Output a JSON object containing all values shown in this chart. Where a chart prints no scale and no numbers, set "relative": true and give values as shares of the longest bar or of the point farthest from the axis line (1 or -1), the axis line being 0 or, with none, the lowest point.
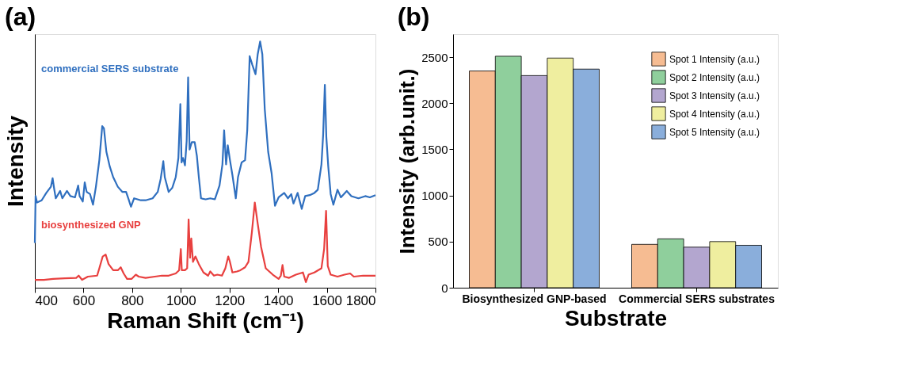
{
  "chart_data": [
    {
      "type": "line",
      "title": "(a)",
      "xlabel": "Raman Shift (cm⁻¹)",
      "ylabel": "Intensity",
      "relative": true,
      "xlim": [
        400,
        1800
      ],
      "xticks": [
        400,
        600,
        800,
        1000,
        1200,
        1400,
        1600,
        1800
      ],
      "tick_labels": "x",
      "grid": false,
      "legend": false,
      "marker": "none",
      "line_style": "solid",
      "series": [
        {
          "name": "commercial SERS substrate",
          "color": "#2f6fbf",
          "x": [
            400,
            403,
            409,
            428,
            447,
            466,
            473,
            480,
            486,
            504,
            513,
            532,
            546,
            565,
            578,
            584,
            597,
            605,
            613,
            627,
            639,
            651,
            665,
            677,
            684,
            694,
            708,
            722,
            741,
            760,
            775,
            784,
            795,
            808,
            836,
            855,
            884,
            905,
            917,
            928,
            934,
            950,
            965,
            979,
            990,
            998,
            1003,
            1009,
            1017,
            1024,
            1030,
            1036,
            1045,
            1057,
            1066,
            1074,
            1083,
            1102,
            1121,
            1140,
            1159,
            1171,
            1178,
            1186,
            1193,
            1202,
            1212,
            1226,
            1235,
            1250,
            1264,
            1273,
            1283,
            1294,
            1307,
            1316,
            1326,
            1335,
            1345,
            1359,
            1373,
            1387,
            1402,
            1425,
            1440,
            1454,
            1463,
            1480,
            1497,
            1511,
            1530,
            1549,
            1563,
            1578,
            1585,
            1592,
            1598,
            1606,
            1616,
            1627,
            1644,
            1658,
            1682,
            1701,
            1730,
            1758,
            1777,
            1800
          ],
          "values": [
            0.182,
            0.372,
            0.346,
            0.355,
            0.385,
            0.41,
            0.445,
            0.398,
            0.363,
            0.393,
            0.363,
            0.393,
            0.372,
            0.367,
            0.415,
            0.372,
            0.35,
            0.428,
            0.389,
            0.38,
            0.337,
            0.41,
            0.518,
            0.656,
            0.647,
            0.552,
            0.492,
            0.449,
            0.41,
            0.389,
            0.389,
            0.363,
            0.329,
            0.363,
            0.355,
            0.355,
            0.363,
            0.389,
            0.441,
            0.514,
            0.449,
            0.389,
            0.406,
            0.449,
            0.527,
            0.746,
            0.509,
            0.527,
            0.497,
            0.596,
            0.854,
            0.561,
            0.591,
            0.591,
            0.535,
            0.449,
            0.363,
            0.359,
            0.363,
            0.359,
            0.415,
            0.501,
            0.639,
            0.501,
            0.578,
            0.518,
            0.458,
            0.363,
            0.449,
            0.509,
            0.518,
            0.639,
            0.94,
            0.905,
            0.867,
            0.948,
            1.0,
            0.948,
            0.725,
            0.552,
            0.466,
            0.333,
            0.367,
            0.385,
            0.363,
            0.38,
            0.342,
            0.385,
            0.32,
            0.372,
            0.376,
            0.385,
            0.398,
            0.501,
            0.621,
            0.824,
            0.613,
            0.492,
            0.38,
            0.337,
            0.398,
            0.367,
            0.393,
            0.372,
            0.363,
            0.372,
            0.367,
            0.376
          ]
        },
        {
          "name": "biosynthesized GNP",
          "color": "#e8403f",
          "x": [
            400,
            437,
            475,
            523,
            570,
            580,
            594,
            618,
            656,
            665,
            679,
            691,
            703,
            722,
            741,
            753,
            765,
            779,
            798,
            815,
            827,
            855,
            893,
            922,
            950,
            979,
            993,
            1000,
            1004,
            1017,
            1026,
            1032,
            1038,
            1043,
            1050,
            1060,
            1074,
            1093,
            1112,
            1121,
            1136,
            1150,
            1169,
            1183,
            1195,
            1202,
            1212,
            1231,
            1245,
            1264,
            1278,
            1292,
            1304,
            1316,
            1330,
            1349,
            1378,
            1402,
            1411,
            1418,
            1425,
            1445,
            1473,
            1502,
            1514,
            1525,
            1549,
            1578,
            1589,
            1597,
            1604,
            1616,
            1644,
            1673,
            1696,
            1711,
            1749,
            1800
          ],
          "values": [
            0.032,
            0.032,
            0.036,
            0.038,
            0.04,
            0.049,
            0.032,
            0.045,
            0.049,
            0.079,
            0.127,
            0.135,
            0.096,
            0.071,
            0.071,
            0.083,
            0.058,
            0.036,
            0.036,
            0.053,
            0.045,
            0.04,
            0.045,
            0.049,
            0.049,
            0.058,
            0.071,
            0.157,
            0.071,
            0.071,
            0.079,
            0.277,
            0.122,
            0.2,
            0.105,
            0.127,
            0.096,
            0.062,
            0.049,
            0.066,
            0.049,
            0.053,
            0.049,
            0.079,
            0.127,
            0.105,
            0.062,
            0.066,
            0.071,
            0.083,
            0.105,
            0.225,
            0.346,
            0.26,
            0.165,
            0.079,
            0.053,
            0.036,
            0.049,
            0.092,
            0.045,
            0.04,
            0.053,
            0.062,
            0.023,
            0.053,
            0.062,
            0.079,
            0.157,
            0.312,
            0.088,
            0.053,
            0.045,
            0.053,
            0.058,
            0.045,
            0.049,
            0.049
          ]
        }
      ]
    },
    {
      "type": "bar",
      "title": "(b)",
      "xlabel": "Substrate",
      "ylabel": "Intensity (arb.unit.)",
      "categories": [
        "Biosynthesized GNP-based",
        "Commercial SERS substrates"
      ],
      "ylim": [
        0,
        2750
      ],
      "yticks": [
        0,
        500,
        1000,
        1500,
        2000,
        2500
      ],
      "grid": false,
      "legend": "top right",
      "series": [
        {
          "name": "Spot 1 Intensity (a.u.)",
          "color": "#f6bc92",
          "values": [
            2350,
            470
          ]
        },
        {
          "name": "Spot 2 Intensity (a.u.)",
          "color": "#8fcf9c",
          "values": [
            2510,
            530
          ]
        },
        {
          "name": "Spot 3 Intensity (a.u.)",
          "color": "#b3a6cf",
          "values": [
            2300,
            440
          ]
        },
        {
          "name": "Spot 4 Intensity (a.u.)",
          "color": "#efee9f",
          "values": [
            2490,
            500
          ]
        },
        {
          "name": "Spot 5 Intensity (a.u.)",
          "color": "#8aaedb",
          "values": [
            2370,
            460
          ]
        }
      ]
    }
  ]
}
